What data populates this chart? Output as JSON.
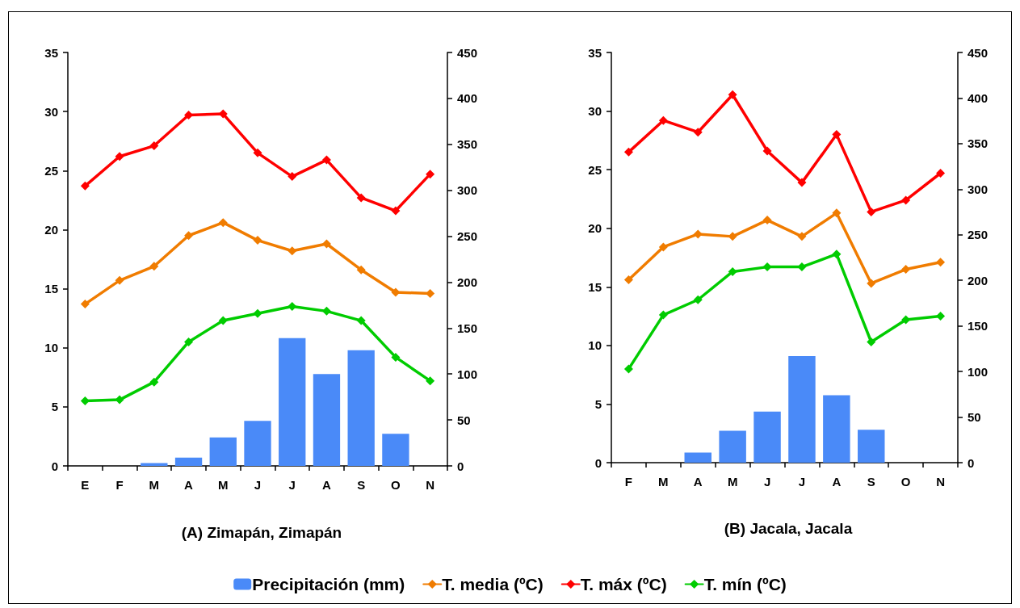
{
  "chart_data": [
    {
      "type": "line",
      "title": "(A) Zimapán, Zimapán",
      "categories": [
        "E",
        "F",
        "M",
        "A",
        "M",
        "J",
        "J",
        "A",
        "S",
        "O",
        "N"
      ],
      "series": [
        {
          "name": "Precipitación (mm)",
          "type": "bar",
          "axis": "y2",
          "color": "#4a8af8",
          "values": [
            0,
            0,
            3,
            9,
            31,
            49,
            139,
            100,
            126,
            35,
            0
          ]
        },
        {
          "name": "T. media (ºC)",
          "color": "#f07c00",
          "values": [
            13.7,
            15.7,
            16.9,
            19.5,
            20.6,
            19.1,
            18.2,
            18.8,
            16.6,
            14.7,
            14.6
          ]
        },
        {
          "name": "T. máx (ºC)",
          "color": "#ff0000",
          "values": [
            23.7,
            26.2,
            27.1,
            29.7,
            29.8,
            26.5,
            24.5,
            25.9,
            22.7,
            21.6,
            24.7
          ]
        },
        {
          "name": "T. mín (ºC)",
          "color": "#00cc00",
          "values": [
            5.5,
            5.6,
            7.1,
            10.5,
            12.3,
            12.9,
            13.5,
            13.1,
            12.3,
            9.2,
            7.2
          ]
        }
      ],
      "ylim": [
        0,
        35
      ],
      "yticks": [
        0,
        5,
        10,
        15,
        20,
        25,
        30,
        35
      ],
      "y2lim": [
        0,
        450
      ],
      "y2ticks": [
        0,
        50,
        100,
        150,
        200,
        250,
        300,
        350,
        400,
        450
      ],
      "grid": false,
      "legend": "bottom",
      "marker": "diamond",
      "line_style": "solid"
    },
    {
      "type": "line",
      "title": "(B) Jacala, Jacala",
      "categories": [
        "F",
        "M",
        "A",
        "M",
        "J",
        "J",
        "A",
        "S",
        "O",
        "N"
      ],
      "series": [
        {
          "type": "bar",
          "axis": "y2",
          "color": "#4a8af8",
          "values": [
            0,
            0,
            11,
            35,
            56,
            117,
            74,
            36,
            0,
            0
          ]
        },
        {
          "color": "#f07c00",
          "values": [
            15.6,
            18.4,
            19.5,
            19.3,
            20.7,
            19.3,
            21.3,
            15.3,
            16.5,
            17.1
          ]
        },
        {
          "color": "#ff0000",
          "values": [
            26.5,
            29.2,
            28.2,
            31.4,
            26.6,
            23.9,
            28.0,
            21.4,
            22.4,
            24.7
          ]
        },
        {
          "color": "#00cc00",
          "values": [
            8.0,
            12.6,
            13.9,
            16.3,
            16.7,
            16.7,
            17.8,
            10.3,
            12.2,
            12.5
          ]
        }
      ],
      "ylim": [
        0,
        35
      ],
      "yticks": [
        0,
        5,
        10,
        15,
        20,
        25,
        30,
        35
      ],
      "y2lim": [
        0,
        450
      ],
      "y2ticks": [
        0,
        50,
        100,
        150,
        200,
        250,
        300,
        350,
        400,
        450
      ],
      "grid": false,
      "legend": false,
      "marker": "diamond",
      "line_style": "solid"
    }
  ]
}
